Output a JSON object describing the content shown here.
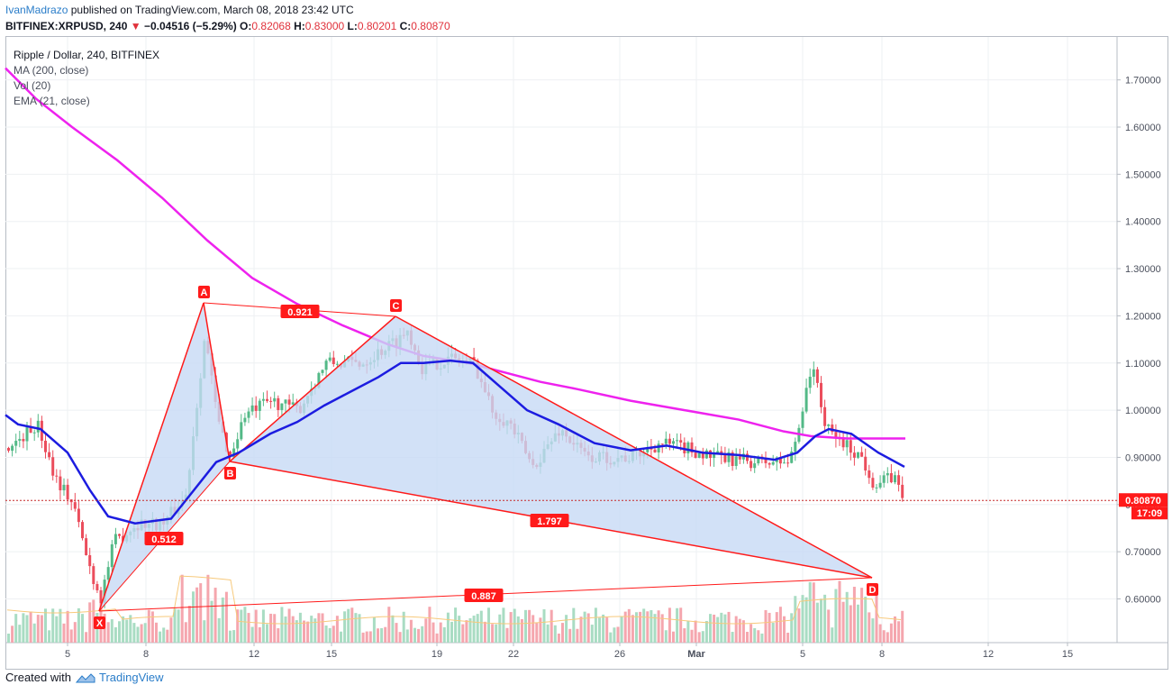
{
  "header": {
    "author": "IvanMadrazo",
    "published_text": "published on TradingView.com, March 08, 2018 23:42 UTC",
    "symbol": "BITFINEX:XRPUSD, 240",
    "change_arrow": "▼",
    "change": "−0.04516 (−5.29%)",
    "o_label": "O:",
    "o_value": "0.82068",
    "h_label": "H:",
    "h_value": "0.83000",
    "l_label": "L:",
    "l_value": "0.80201",
    "c_label": "C:",
    "c_value": "0.80870"
  },
  "legend": {
    "title": "Ripple / Dollar, 240, BITFINEX",
    "ma": "MA (200, close)",
    "vol": "Vol (20)",
    "ema": "EMA (21, close)"
  },
  "footer": {
    "created_with": "Created with",
    "brand": "TradingView"
  },
  "colors": {
    "up": "#53b987",
    "down": "#eb4d5c",
    "ma200": "#ee22ee",
    "ema21": "#1c1ce0",
    "pattern": "#ff1a1a",
    "fill": "#c7daf5",
    "vol_up": "#a9dcc3",
    "vol_down": "#f5a6ae",
    "vol_ma": "#f7c97b",
    "label_bg": "#ff1a1a"
  },
  "chart_data": {
    "type": "candlestick",
    "y_axis": {
      "ticks": [
        "1.70000",
        "1.60000",
        "1.50000",
        "1.40000",
        "1.30000",
        "1.20000",
        "1.10000",
        "1.00000",
        "0.90000",
        "0.80000",
        "0.70000",
        "0.60000"
      ],
      "tick_values": [
        1.7,
        1.6,
        1.5,
        1.4,
        1.3,
        1.2,
        1.1,
        1.0,
        0.9,
        0.8,
        0.7,
        0.6
      ],
      "range": [
        0.515,
        1.795
      ]
    },
    "x_axis": {
      "ticks": [
        "5",
        "8",
        "12",
        "15",
        "19",
        "22",
        "26",
        "Mar",
        "5",
        "8",
        "12",
        "15"
      ]
    },
    "last_price": "0.80870",
    "countdown": "17:09",
    "last_price_value": 0.8087,
    "harmonic_points": [
      {
        "name": "X",
        "price": 0.575
      },
      {
        "name": "A",
        "price": 1.225
      },
      {
        "name": "B",
        "price": 0.892
      },
      {
        "name": "C",
        "price": 1.2
      },
      {
        "name": "D",
        "price": 0.643
      }
    ],
    "ratios": [
      {
        "label": "0.921",
        "between": "A-C"
      },
      {
        "label": "0.512",
        "between": "X-B"
      },
      {
        "label": "1.797",
        "between": "B-D"
      },
      {
        "label": "0.887",
        "between": "X-D"
      }
    ]
  }
}
